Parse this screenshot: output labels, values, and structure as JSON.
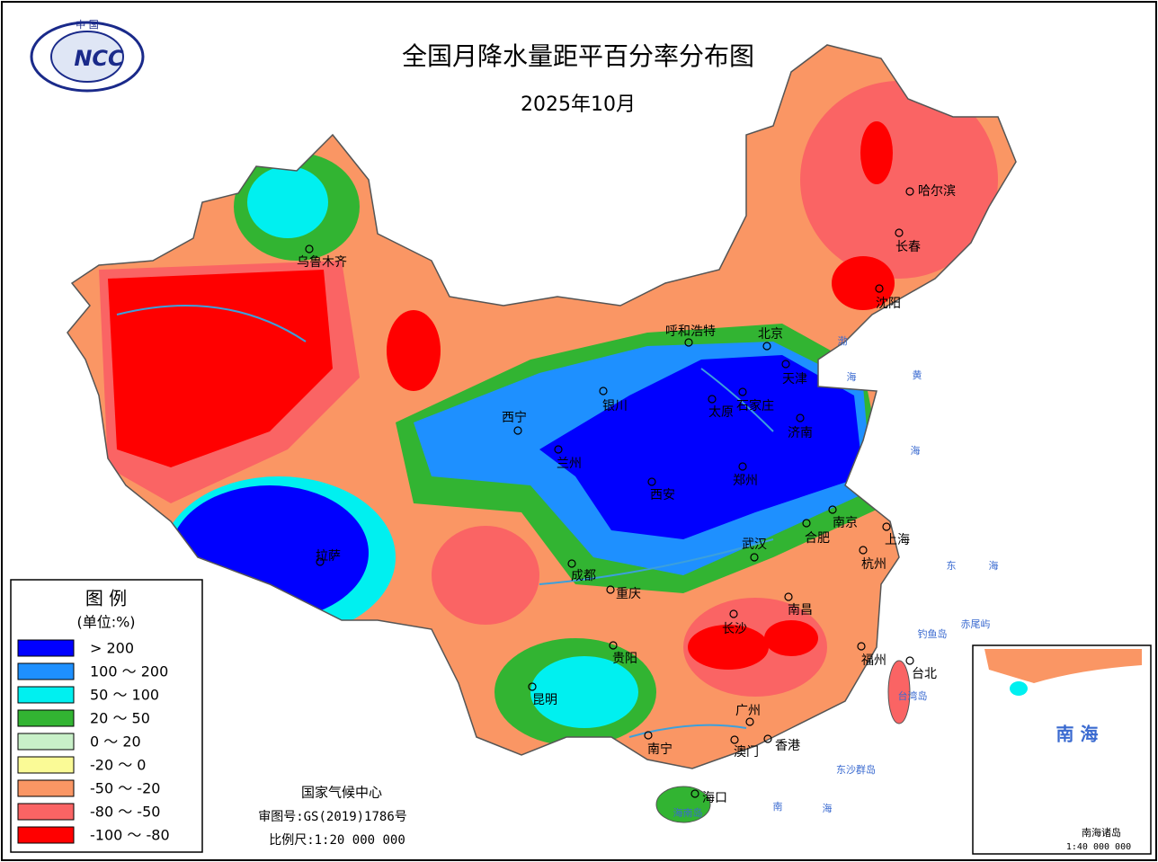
{
  "title": "全国月降水量距平百分率分布图",
  "subtitle": "2025年10月",
  "logo": {
    "top": "中 国",
    "text": "NCC"
  },
  "legend": {
    "title": "图 例",
    "unit": "(单位:%)",
    "items": [
      {
        "label": "> 200",
        "color": "#0000ff"
      },
      {
        "label": "100 ～ 200",
        "color": "#1e90ff"
      },
      {
        "label": "50 ～ 100",
        "color": "#00f0f0"
      },
      {
        "label": "20 ～ 50",
        "color": "#32b432"
      },
      {
        "label": "0 ～ 20",
        "color": "#c8f0c8"
      },
      {
        "label": "-20 ～ 0",
        "color": "#fafa96"
      },
      {
        "label": "-50 ～ -20",
        "color": "#fa9664"
      },
      {
        "label": "-80 ～ -50",
        "color": "#fa6464"
      },
      {
        "label": "-100 ～ -80",
        "color": "#ff0000"
      }
    ]
  },
  "cities": [
    {
      "name": "乌鲁木齐"
    },
    {
      "name": "呼和浩特"
    },
    {
      "name": "北京"
    },
    {
      "name": "天津"
    },
    {
      "name": "石家庄"
    },
    {
      "name": "太原"
    },
    {
      "name": "济南"
    },
    {
      "name": "银川"
    },
    {
      "name": "西宁"
    },
    {
      "name": "兰州"
    },
    {
      "name": "西安"
    },
    {
      "name": "郑州"
    },
    {
      "name": "南京"
    },
    {
      "name": "合肥"
    },
    {
      "name": "上海"
    },
    {
      "name": "武汉"
    },
    {
      "name": "杭州"
    },
    {
      "name": "拉萨"
    },
    {
      "name": "成都"
    },
    {
      "name": "重庆"
    },
    {
      "name": "长沙"
    },
    {
      "name": "南昌"
    },
    {
      "name": "贵阳"
    },
    {
      "name": "福州"
    },
    {
      "name": "台北"
    },
    {
      "name": "昆明"
    },
    {
      "name": "广州"
    },
    {
      "name": "南宁"
    },
    {
      "name": "澳门"
    },
    {
      "name": "香港"
    },
    {
      "name": "海口"
    },
    {
      "name": "哈尔滨"
    },
    {
      "name": "长春"
    },
    {
      "name": "沈阳"
    }
  ],
  "places": [
    "渤",
    "海",
    "黄",
    "海",
    "东",
    "海",
    "南",
    "海",
    "钓鱼岛",
    "赤尾屿",
    "东沙群岛",
    "台湾岛",
    "海南岛"
  ],
  "footer": {
    "agency": "国家气候中心",
    "approval": "审图号:GS(2019)1786号",
    "scale": "比例尺:1:20 000 000"
  },
  "inset": {
    "title": "南 海",
    "label": "南海诸岛",
    "scale": "1:40 000 000"
  }
}
